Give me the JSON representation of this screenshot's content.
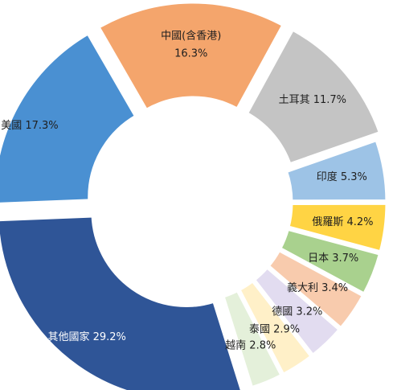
{
  "chart_data": {
    "type": "pie",
    "donut": true,
    "title": "",
    "legend": "none",
    "start_angle_deg": -30,
    "slices": [
      {
        "label": "中國(含香港)",
        "value": 16.3,
        "text": "中國(含香港)",
        "text2": "16.3%",
        "color": "#F4A56C",
        "text_color": "#1f1f1f"
      },
      {
        "label": "土耳其",
        "value": 11.7,
        "text": "土耳其 11.7%",
        "color": "#C4C4C4",
        "text_color": "#1f1f1f"
      },
      {
        "label": "印度",
        "value": 5.3,
        "text": "印度 5.3%",
        "color": "#9DC3E6",
        "text_color": "#1f1f1f"
      },
      {
        "label": "俄羅斯",
        "value": 4.2,
        "text": "俄羅斯 4.2%",
        "color": "#FFD444",
        "text_color": "#1f1f1f"
      },
      {
        "label": "日本",
        "value": 3.7,
        "text": "日本 3.7%",
        "color": "#A9D18E",
        "text_color": "#1f1f1f"
      },
      {
        "label": "義大利",
        "value": 3.4,
        "text": "義大利 3.4%",
        "color": "#F8CBAD",
        "text_color": "#1f1f1f"
      },
      {
        "label": "德國",
        "value": 3.2,
        "text": "德國 3.2%",
        "color": "#E2DCF0",
        "text_color": "#1f1f1f"
      },
      {
        "label": "泰國",
        "value": 2.9,
        "text": "泰國 2.9%",
        "color": "#FFF0C8",
        "text_color": "#1f1f1f"
      },
      {
        "label": "越南",
        "value": 2.8,
        "text": "越南 2.8%",
        "color": "#E4F0DA",
        "text_color": "#1f1f1f"
      },
      {
        "label": "其他國家",
        "value": 29.2,
        "text": "其他國家 29.2%",
        "color": "#2F5597",
        "text_color": "#ffffff"
      },
      {
        "label": "美國",
        "value": 17.3,
        "text": "美國 17.3%",
        "color": "#4A90D2",
        "text_color": "#1f1f1f"
      }
    ]
  }
}
